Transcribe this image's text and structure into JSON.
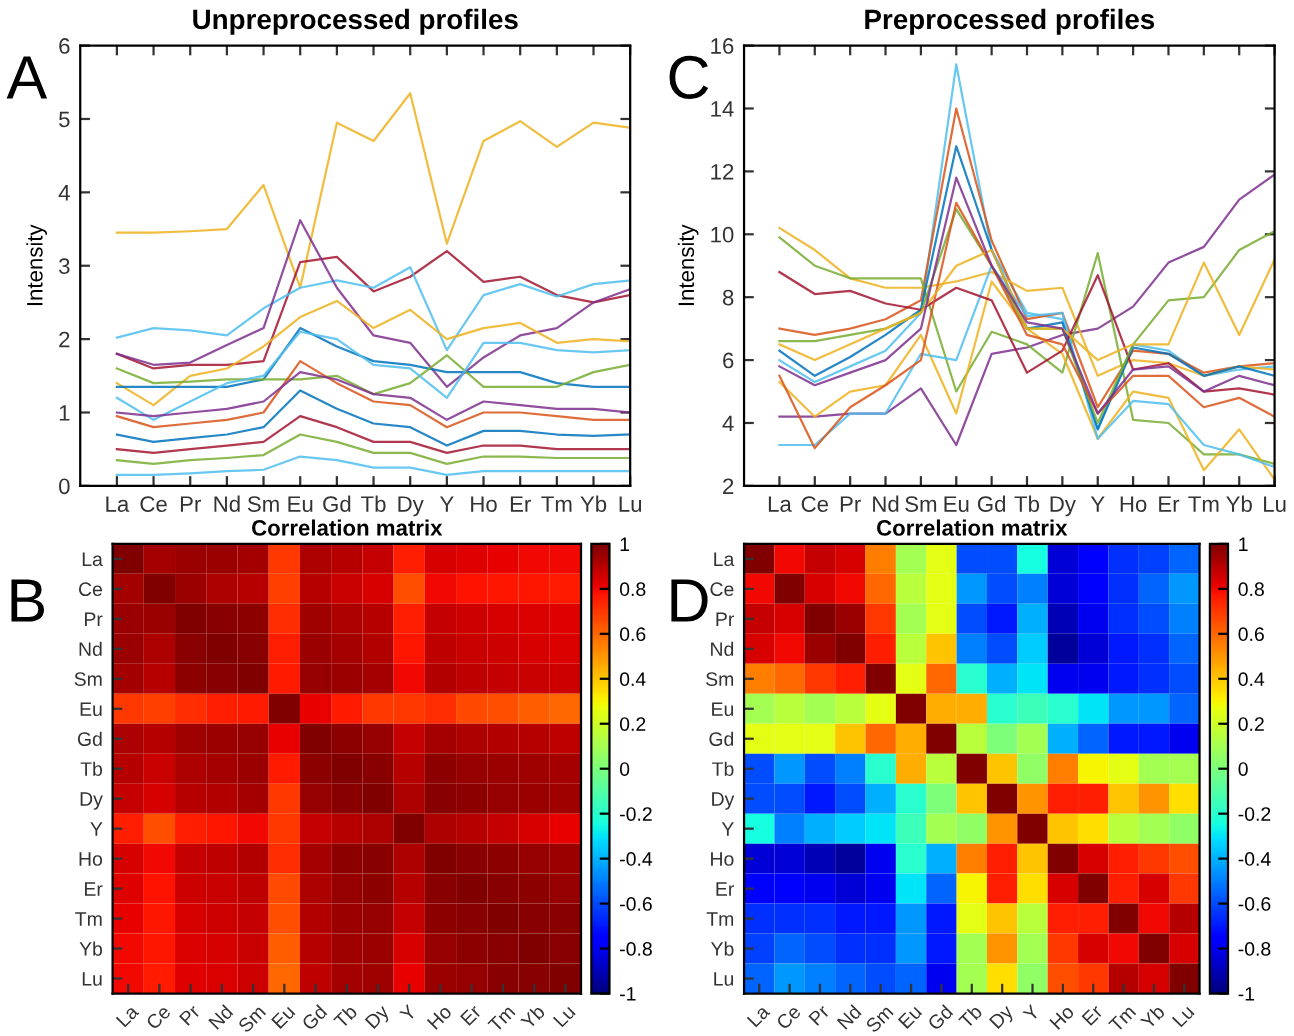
{
  "chart_data": [
    {
      "type": "line",
      "title": "Unpreprocessed profiles",
      "ylabel": "Intensity",
      "annotations": [
        "A"
      ],
      "categories": [
        "La",
        "Ce",
        "Pr",
        "Nd",
        "Sm",
        "Eu",
        "Gd",
        "Tb",
        "Dy",
        "Y",
        "Ho",
        "Er",
        "Tm",
        "Yb",
        "Lu"
      ],
      "ylim": [
        0,
        6
      ],
      "yticks": [
        0,
        1,
        2,
        3,
        4,
        5,
        6
      ],
      "grid": false,
      "legend": false,
      "series": [
        {
          "color": "#edb120",
          "values": [
            3.45,
            3.45,
            3.47,
            3.5,
            4.1,
            2.7,
            4.95,
            4.7,
            5.35,
            3.3,
            4.7,
            4.97,
            4.62,
            4.95,
            4.88
          ]
        },
        {
          "color": "#a2142f",
          "values": [
            1.8,
            1.6,
            1.65,
            1.65,
            1.7,
            3.05,
            3.12,
            2.65,
            2.85,
            3.2,
            2.78,
            2.85,
            2.6,
            2.5,
            2.6
          ]
        },
        {
          "color": "#4dbeee",
          "values": [
            2.02,
            2.15,
            2.12,
            2.05,
            2.42,
            2.7,
            2.8,
            2.7,
            2.98,
            1.85,
            2.6,
            2.75,
            2.58,
            2.75,
            2.8
          ]
        },
        {
          "color": "#7e2f8e",
          "values": [
            1.8,
            1.65,
            1.68,
            1.92,
            2.15,
            3.62,
            2.7,
            2.05,
            1.95,
            1.35,
            1.75,
            2.05,
            2.15,
            2.5,
            2.68
          ]
        },
        {
          "color": "#edb120",
          "values": [
            1.4,
            1.1,
            1.5,
            1.6,
            1.9,
            2.3,
            2.52,
            2.15,
            2.4,
            2.0,
            2.15,
            2.22,
            1.95,
            2.0,
            1.97
          ]
        },
        {
          "color": "#0072bd",
          "values": [
            1.35,
            1.35,
            1.35,
            1.35,
            1.45,
            2.15,
            1.9,
            1.7,
            1.65,
            1.55,
            1.55,
            1.55,
            1.4,
            1.35,
            1.35
          ]
        },
        {
          "color": "#77ac30",
          "values": [
            1.6,
            1.4,
            1.42,
            1.45,
            1.45,
            1.45,
            1.5,
            1.25,
            1.4,
            1.78,
            1.35,
            1.35,
            1.35,
            1.55,
            1.65
          ]
        },
        {
          "color": "#4dbeee",
          "values": [
            1.2,
            0.9,
            1.15,
            1.4,
            1.5,
            2.1,
            2.0,
            1.65,
            1.6,
            1.2,
            1.95,
            1.95,
            1.85,
            1.82,
            1.85
          ]
        },
        {
          "color": "#d95319",
          "values": [
            0.95,
            0.8,
            0.85,
            0.9,
            1.0,
            1.7,
            1.4,
            1.15,
            1.1,
            0.8,
            1.0,
            1.0,
            0.95,
            0.9,
            0.9
          ]
        },
        {
          "color": "#0072bd",
          "values": [
            0.7,
            0.6,
            0.65,
            0.7,
            0.8,
            1.3,
            1.05,
            0.85,
            0.8,
            0.55,
            0.75,
            0.75,
            0.7,
            0.68,
            0.7
          ]
        },
        {
          "color": "#a2142f",
          "values": [
            0.5,
            0.45,
            0.5,
            0.55,
            0.6,
            0.95,
            0.8,
            0.6,
            0.6,
            0.45,
            0.55,
            0.55,
            0.5,
            0.5,
            0.5
          ]
        },
        {
          "color": "#77ac30",
          "values": [
            0.35,
            0.3,
            0.35,
            0.38,
            0.42,
            0.7,
            0.6,
            0.45,
            0.45,
            0.3,
            0.4,
            0.4,
            0.38,
            0.38,
            0.38
          ]
        },
        {
          "color": "#4dbeee",
          "values": [
            0.15,
            0.15,
            0.17,
            0.2,
            0.22,
            0.4,
            0.35,
            0.25,
            0.25,
            0.15,
            0.2,
            0.2,
            0.2,
            0.2,
            0.2
          ]
        },
        {
          "color": "#7e2f8e",
          "values": [
            1.0,
            0.95,
            1.0,
            1.05,
            1.15,
            1.55,
            1.45,
            1.25,
            1.2,
            0.9,
            1.15,
            1.1,
            1.05,
            1.05,
            1.0
          ]
        }
      ]
    },
    {
      "type": "line",
      "title": "Preprocessed profiles",
      "ylabel": "Intensity",
      "annotations": [
        "C"
      ],
      "categories": [
        "La",
        "Ce",
        "Pr",
        "Nd",
        "Sm",
        "Eu",
        "Gd",
        "Tb",
        "Dy",
        "Y",
        "Ho",
        "Er",
        "Tm",
        "Yb",
        "Lu"
      ],
      "ylim": [
        2,
        16
      ],
      "yticks": [
        2,
        4,
        6,
        8,
        10,
        12,
        14,
        16
      ],
      "grid": false,
      "legend": false,
      "series": [
        {
          "color": "#4dbeee",
          "values": [
            6.0,
            5.3,
            5.8,
            6.3,
            7.5,
            15.4,
            9.5,
            7.5,
            7.3,
            3.8,
            6.5,
            6.3,
            5.5,
            5.7,
            5.8
          ]
        },
        {
          "color": "#d95319",
          "values": [
            7.0,
            6.8,
            7.0,
            7.3,
            7.9,
            14.0,
            9.8,
            7.3,
            7.5,
            4.5,
            6.3,
            6.2,
            5.6,
            5.8,
            5.9
          ]
        },
        {
          "color": "#7e2f8e",
          "values": [
            4.2,
            4.2,
            4.3,
            4.3,
            5.1,
            3.3,
            6.2,
            6.4,
            6.8,
            7.0,
            7.7,
            9.1,
            9.6,
            11.1,
            11.9
          ]
        },
        {
          "color": "#edb120",
          "values": [
            10.2,
            9.5,
            8.6,
            8.3,
            8.3,
            8.5,
            8.8,
            8.2,
            8.3,
            5.5,
            6.0,
            5.9,
            5.5,
            5.8,
            5.7
          ]
        },
        {
          "color": "#77ac30",
          "values": [
            9.9,
            9.0,
            8.6,
            8.6,
            8.6,
            5.0,
            6.9,
            6.5,
            5.6,
            9.4,
            4.1,
            4.0,
            3.0,
            3.0,
            2.7
          ]
        },
        {
          "color": "#edb120",
          "values": [
            5.3,
            4.2,
            5.0,
            5.2,
            6.8,
            4.3,
            8.5,
            7.0,
            6.2,
            3.5,
            5.0,
            4.8,
            2.5,
            3.8,
            2.2
          ]
        },
        {
          "color": "#4dbeee",
          "values": [
            3.3,
            3.3,
            4.3,
            4.3,
            6.2,
            6.0,
            9.0,
            7.4,
            7.5,
            3.5,
            4.7,
            4.6,
            3.3,
            3.0,
            2.6
          ]
        },
        {
          "color": "#0072bd",
          "values": [
            6.3,
            5.5,
            6.1,
            6.8,
            7.6,
            12.8,
            9.5,
            7.0,
            7.2,
            3.8,
            6.4,
            6.2,
            5.5,
            5.8,
            5.5
          ]
        },
        {
          "color": "#a2142f",
          "values": [
            8.8,
            8.1,
            8.2,
            7.8,
            7.6,
            8.3,
            7.9,
            5.6,
            6.3,
            8.7,
            5.7,
            5.9,
            5.0,
            5.1,
            4.9
          ]
        },
        {
          "color": "#77ac30",
          "values": [
            6.6,
            6.6,
            6.8,
            7.0,
            7.5,
            10.8,
            9.0,
            7.0,
            7.0,
            4.0,
            6.5,
            7.9,
            8.0,
            9.5,
            10.1
          ]
        },
        {
          "color": "#d95319",
          "values": [
            5.5,
            3.2,
            4.5,
            5.2,
            6.0,
            11.0,
            9.0,
            6.8,
            6.5,
            4.3,
            5.5,
            5.5,
            4.5,
            4.8,
            4.2
          ]
        },
        {
          "color": "#edb120",
          "values": [
            6.5,
            6.0,
            6.5,
            7.0,
            7.5,
            9.0,
            9.5,
            7.0,
            7.0,
            6.0,
            6.5,
            6.5,
            9.1,
            6.8,
            9.2
          ]
        },
        {
          "color": "#7e2f8e",
          "values": [
            5.8,
            5.2,
            5.6,
            6.0,
            7.0,
            11.8,
            9.0,
            7.2,
            7.0,
            4.3,
            5.7,
            5.8,
            5.0,
            5.5,
            5.2
          ]
        }
      ]
    },
    {
      "type": "heatmap",
      "title": "Correlation matrix",
      "annotations": [
        "B"
      ],
      "categories": [
        "La",
        "Ce",
        "Pr",
        "Nd",
        "Sm",
        "Eu",
        "Gd",
        "Tb",
        "Dy",
        "Y",
        "Ho",
        "Er",
        "Tm",
        "Yb",
        "Lu"
      ],
      "y_categories": [
        "La",
        "Ce",
        "Pr",
        "Nd",
        "Sm",
        "Eu",
        "Gd",
        "Tb",
        "Dy",
        "Y",
        "Ho",
        "Er",
        "Tm",
        "Yb",
        "Lu"
      ],
      "clim": [
        -1,
        1
      ],
      "cticks": [
        -1,
        -0.8,
        -0.6,
        -0.4,
        -0.2,
        0,
        0.2,
        0.4,
        0.6,
        0.8,
        1
      ],
      "cells": [
        [
          1,
          0.93,
          0.95,
          0.95,
          0.93,
          0.7,
          0.92,
          0.9,
          0.88,
          0.75,
          0.85,
          0.83,
          0.82,
          0.8,
          0.8
        ],
        [
          0.93,
          1,
          0.95,
          0.92,
          0.9,
          0.68,
          0.9,
          0.87,
          0.85,
          0.65,
          0.8,
          0.78,
          0.77,
          0.77,
          0.76
        ],
        [
          0.95,
          0.95,
          1,
          0.98,
          0.97,
          0.72,
          0.94,
          0.92,
          0.9,
          0.75,
          0.88,
          0.86,
          0.85,
          0.84,
          0.83
        ],
        [
          0.95,
          0.92,
          0.98,
          1,
          0.98,
          0.75,
          0.95,
          0.93,
          0.91,
          0.77,
          0.89,
          0.87,
          0.86,
          0.85,
          0.84
        ],
        [
          0.93,
          0.9,
          0.97,
          0.98,
          1,
          0.76,
          0.96,
          0.95,
          0.93,
          0.8,
          0.91,
          0.89,
          0.88,
          0.87,
          0.86
        ],
        [
          0.7,
          0.68,
          0.72,
          0.75,
          0.76,
          1,
          0.82,
          0.76,
          0.7,
          0.7,
          0.72,
          0.66,
          0.65,
          0.62,
          0.6
        ],
        [
          0.92,
          0.9,
          0.94,
          0.95,
          0.96,
          0.82,
          1,
          0.97,
          0.96,
          0.88,
          0.93,
          0.92,
          0.91,
          0.9,
          0.89
        ],
        [
          0.9,
          0.87,
          0.92,
          0.93,
          0.95,
          0.76,
          0.97,
          1,
          0.98,
          0.9,
          0.97,
          0.96,
          0.95,
          0.94,
          0.93
        ],
        [
          0.88,
          0.85,
          0.9,
          0.91,
          0.93,
          0.7,
          0.96,
          0.98,
          1,
          0.92,
          0.98,
          0.97,
          0.96,
          0.95,
          0.94
        ],
        [
          0.75,
          0.65,
          0.75,
          0.77,
          0.8,
          0.7,
          0.88,
          0.9,
          0.92,
          1,
          0.92,
          0.9,
          0.88,
          0.85,
          0.82
        ],
        [
          0.85,
          0.8,
          0.88,
          0.89,
          0.91,
          0.72,
          0.93,
          0.97,
          0.98,
          0.92,
          1,
          0.98,
          0.97,
          0.96,
          0.95
        ],
        [
          0.83,
          0.78,
          0.86,
          0.87,
          0.89,
          0.66,
          0.92,
          0.96,
          0.97,
          0.9,
          0.98,
          1,
          0.98,
          0.97,
          0.96
        ],
        [
          0.82,
          0.77,
          0.85,
          0.86,
          0.88,
          0.65,
          0.91,
          0.95,
          0.96,
          0.88,
          0.97,
          0.98,
          1,
          0.98,
          0.98
        ],
        [
          0.8,
          0.77,
          0.84,
          0.85,
          0.87,
          0.62,
          0.9,
          0.94,
          0.95,
          0.85,
          0.96,
          0.97,
          0.98,
          1,
          0.98
        ],
        [
          0.8,
          0.76,
          0.83,
          0.84,
          0.86,
          0.6,
          0.89,
          0.93,
          0.94,
          0.82,
          0.95,
          0.96,
          0.98,
          0.98,
          1
        ]
      ]
    },
    {
      "type": "heatmap",
      "title": "Correlation matrix",
      "annotations": [
        "D"
      ],
      "categories": [
        "La",
        "Ce",
        "Pr",
        "Nd",
        "Sm",
        "Eu",
        "Gd",
        "Tb",
        "Dy",
        "Y",
        "Ho",
        "Er",
        "Tm",
        "Yb",
        "Lu"
      ],
      "y_categories": [
        "La",
        "Ce",
        "Pr",
        "Nd",
        "Sm",
        "Eu",
        "Gd",
        "Tb",
        "Dy",
        "Y",
        "Ho",
        "Er",
        "Tm",
        "Yb",
        "Lu"
      ],
      "clim": [
        -1,
        1
      ],
      "cticks": [
        -1,
        -0.8,
        -0.6,
        -0.4,
        -0.2,
        0,
        0.2,
        0.4,
        0.6,
        0.8,
        1
      ],
      "cells": [
        [
          1,
          0.8,
          0.88,
          0.85,
          0.55,
          0.1,
          0.25,
          -0.6,
          -0.6,
          -0.25,
          -0.85,
          -0.75,
          -0.65,
          -0.62,
          -0.55
        ],
        [
          0.8,
          1,
          0.85,
          0.8,
          0.6,
          0.15,
          0.25,
          -0.45,
          -0.6,
          -0.5,
          -0.85,
          -0.75,
          -0.65,
          -0.55,
          -0.45
        ],
        [
          0.88,
          0.85,
          1,
          0.95,
          0.7,
          0.1,
          0.25,
          -0.6,
          -0.7,
          -0.4,
          -0.9,
          -0.8,
          -0.65,
          -0.6,
          -0.5
        ],
        [
          0.85,
          0.8,
          0.95,
          1,
          0.75,
          0.15,
          0.4,
          -0.5,
          -0.6,
          -0.35,
          -0.95,
          -0.85,
          -0.7,
          -0.65,
          -0.55
        ],
        [
          0.55,
          0.6,
          0.7,
          0.75,
          1,
          0.25,
          0.6,
          -0.2,
          -0.4,
          -0.3,
          -0.8,
          -0.8,
          -0.7,
          -0.65,
          -0.6
        ],
        [
          0.1,
          0.15,
          0.1,
          0.15,
          0.25,
          1,
          0.45,
          0.45,
          -0.2,
          -0.15,
          -0.2,
          -0.3,
          -0.45,
          -0.45,
          -0.55
        ],
        [
          0.25,
          0.25,
          0.25,
          0.4,
          0.6,
          0.45,
          1,
          0.15,
          0,
          0.1,
          -0.4,
          -0.55,
          -0.7,
          -0.7,
          -0.8
        ],
        [
          -0.6,
          -0.45,
          -0.6,
          -0.5,
          -0.2,
          0.45,
          0.15,
          1,
          0.4,
          0.05,
          0.55,
          0.3,
          0.25,
          0.1,
          0.1
        ],
        [
          -0.6,
          -0.6,
          -0.7,
          -0.6,
          -0.4,
          -0.2,
          0,
          0.4,
          1,
          0.5,
          0.75,
          0.75,
          0.4,
          0.5,
          0.35
        ],
        [
          -0.25,
          -0.5,
          -0.4,
          -0.35,
          -0.3,
          -0.15,
          0.1,
          0.05,
          0.5,
          1,
          0.4,
          0.35,
          0.15,
          0.1,
          0.05
        ],
        [
          -0.85,
          -0.85,
          -0.9,
          -0.95,
          -0.8,
          -0.2,
          -0.4,
          0.55,
          0.75,
          0.4,
          1,
          0.85,
          0.75,
          0.7,
          0.65
        ],
        [
          -0.75,
          -0.75,
          -0.8,
          -0.85,
          -0.8,
          -0.3,
          -0.55,
          0.3,
          0.75,
          0.35,
          0.85,
          1,
          0.75,
          0.85,
          0.7
        ],
        [
          -0.65,
          -0.65,
          -0.65,
          -0.7,
          -0.7,
          -0.45,
          -0.7,
          0.25,
          0.4,
          0.15,
          0.75,
          0.75,
          1,
          0.8,
          0.9
        ],
        [
          -0.62,
          -0.55,
          -0.6,
          -0.65,
          -0.65,
          -0.45,
          -0.7,
          0.1,
          0.5,
          0.1,
          0.7,
          0.85,
          0.8,
          1,
          0.85
        ],
        [
          -0.55,
          -0.45,
          -0.5,
          -0.55,
          -0.6,
          -0.55,
          -0.8,
          0.1,
          0.35,
          0.05,
          0.65,
          0.7,
          0.9,
          0.85,
          1
        ]
      ]
    }
  ]
}
